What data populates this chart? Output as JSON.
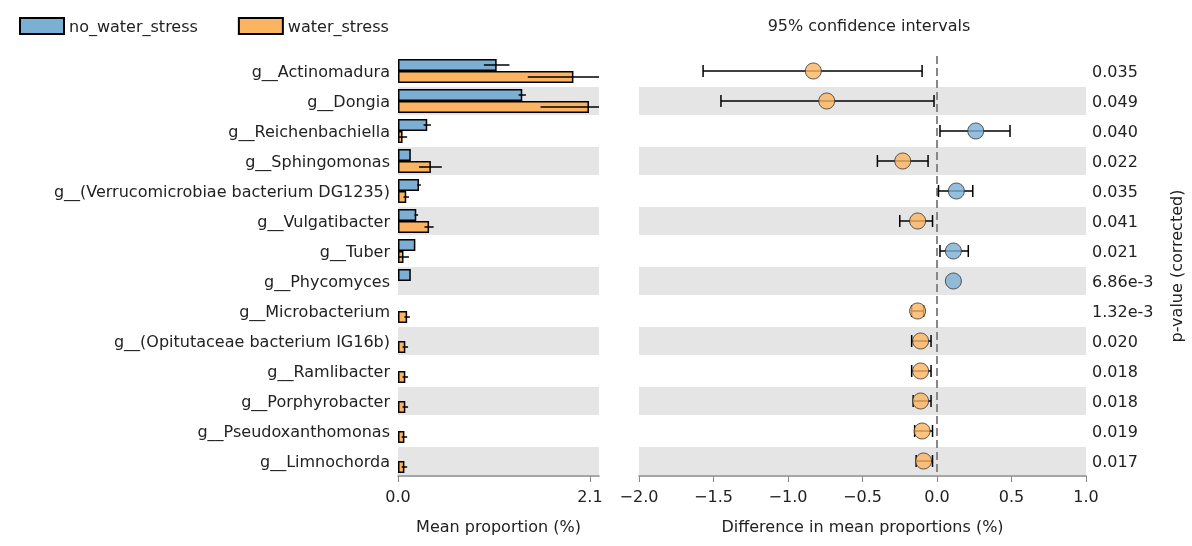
{
  "chart_data": [
    {
      "type": "bar",
      "orientation": "horizontal",
      "legend": "top left",
      "xlabel": "Mean proportion (%)",
      "categories": [
        "g__Actinomadura",
        "g__Dongia",
        "g__Reichenbachiella",
        "g__Sphingomonas",
        "g__(Verrucomicrobiae bacterium DG1235)",
        "g__Vulgatibacter",
        "g__Tuber",
        "g__Phycomyces",
        "g__Microbacterium",
        "g__(Opitutaceae bacterium IG16b)",
        "g__Ramlibacter",
        "g__Porphyrobacter",
        "g__Pseudoxanthomonas",
        "g__Limnochorda"
      ],
      "series": [
        {
          "name": "no_water_stress",
          "color": "#7bafd4",
          "values": [
            1.08,
            1.36,
            0.32,
            0.14,
            0.23,
            0.2,
            0.19,
            0.14,
            0,
            0,
            0,
            0,
            0,
            0
          ],
          "errors": [
            0.14,
            0.04,
            0.04,
            null,
            0.02,
            0.02,
            null,
            null,
            null,
            null,
            null,
            null,
            null,
            null
          ]
        },
        {
          "name": "water_stress",
          "color": "#fdb462",
          "values": [
            1.92,
            2.09,
            0.05,
            0.36,
            0.09,
            0.34,
            0.06,
            0,
            0.1,
            0.08,
            0.08,
            0.08,
            0.07,
            0.07
          ],
          "errors": [
            [
              1.42,
              2.2
            ],
            [
              1.56,
              2.2
            ],
            0.05,
            [
              0.23,
              0.48
            ],
            0.03,
            0.05,
            0.06,
            null,
            0.03,
            0.03,
            0.03,
            0.03,
            0.03,
            0.03
          ]
        }
      ],
      "xlim": [
        0,
        2.2
      ],
      "xticks": [
        {
          "value": 0,
          "label": "0.0"
        },
        {
          "value": 2.1,
          "label": "2.1"
        }
      ],
      "bands": [
        {
          "axis": "y",
          "from": "g__Dongia",
          "to": "g__Dongia",
          "color": "#e5e5e5"
        },
        {
          "axis": "y",
          "from": "g__Sphingomonas",
          "to": "g__Sphingomonas",
          "color": "#e5e5e5"
        },
        {
          "axis": "y",
          "from": "g__Vulgatibacter",
          "to": "g__Vulgatibacter",
          "color": "#e5e5e5"
        },
        {
          "axis": "y",
          "from": "g__Phycomyces",
          "to": "g__Phycomyces",
          "color": "#e5e5e5"
        },
        {
          "axis": "y",
          "from": "g__(Opitutaceae bacterium IG16b)",
          "to": "g__(Opitutaceae bacterium IG16b)",
          "color": "#e5e5e5"
        },
        {
          "axis": "y",
          "from": "g__Porphyrobacter",
          "to": "g__Porphyrobacter",
          "color": "#e5e5e5"
        },
        {
          "axis": "y",
          "from": "g__Limnochorda",
          "to": "g__Limnochorda",
          "color": "#e5e5e5"
        }
      ]
    },
    {
      "type": "scatter",
      "orientation": "horizontal",
      "title": "95% confidence intervals",
      "xlabel": "Difference in mean proportions (%)",
      "y2label": "p-value (corrected)",
      "marker": "circle",
      "tick_labels": "x",
      "categories": [
        "g__Actinomadura",
        "g__Dongia",
        "g__Reichenbachiella",
        "g__Sphingomonas",
        "g__(Verrucomicrobiae bacterium DG1235)",
        "g__Vulgatibacter",
        "g__Tuber",
        "g__Phycomyces",
        "g__Microbacterium",
        "g__(Opitutaceae bacterium IG16b)",
        "g__Ramlibacter",
        "g__Porphyrobacter",
        "g__Pseudoxanthomonas",
        "g__Limnochorda"
      ],
      "y2_categories": [
        "0.035",
        "0.049",
        "0.040",
        "0.022",
        "0.035",
        "0.041",
        "0.021",
        "6.86e-3",
        "1.32e-3",
        "0.020",
        "0.018",
        "0.018",
        "0.019",
        "0.017"
      ],
      "values": [
        -0.83,
        -0.74,
        0.26,
        -0.23,
        0.13,
        -0.13,
        0.11,
        0.11,
        -0.13,
        -0.11,
        -0.11,
        -0.11,
        -0.1,
        -0.09
      ],
      "colors": [
        "#fdb462",
        "#fdb462",
        "#7bafd4",
        "#fdb462",
        "#7bafd4",
        "#fdb462",
        "#7bafd4",
        "#7bafd4",
        "#fdb462",
        "#fdb462",
        "#fdb462",
        "#fdb462",
        "#fdb462",
        "#fdb462"
      ],
      "errors": [
        [
          -1.57,
          -0.1
        ],
        [
          -1.45,
          -0.02
        ],
        [
          0.02,
          0.49
        ],
        [
          -0.4,
          -0.06
        ],
        [
          0.01,
          0.24
        ],
        [
          -0.25,
          -0.03
        ],
        [
          0.02,
          0.21
        ],
        null,
        [
          -0.17,
          -0.09
        ],
        [
          -0.17,
          -0.04
        ],
        [
          -0.17,
          -0.04
        ],
        [
          -0.16,
          -0.04
        ],
        [
          -0.15,
          -0.03
        ],
        [
          -0.14,
          -0.03
        ]
      ],
      "xlim": [
        -2,
        1
      ],
      "xticks": [
        {
          "value": -2,
          "label": "−2.0"
        },
        {
          "value": -1.5,
          "label": "−1.5"
        },
        {
          "value": -1,
          "label": "−1.0"
        },
        {
          "value": -0.5,
          "label": "−0.5"
        },
        {
          "value": 0,
          "label": "0.0"
        },
        {
          "value": 0.5,
          "label": "0.5"
        },
        {
          "value": 1,
          "label": "1.0"
        }
      ],
      "ref_lines": [
        {
          "axis": "x",
          "value": 0,
          "color": "#888888",
          "line_style": "dashed"
        }
      ],
      "bands": [
        {
          "axis": "y",
          "from": "g__Dongia",
          "to": "g__Dongia",
          "color": "#e5e5e5"
        },
        {
          "axis": "y",
          "from": "g__Sphingomonas",
          "to": "g__Sphingomonas",
          "color": "#e5e5e5"
        },
        {
          "axis": "y",
          "from": "g__Vulgatibacter",
          "to": "g__Vulgatibacter",
          "color": "#e5e5e5"
        },
        {
          "axis": "y",
          "from": "g__Phycomyces",
          "to": "g__Phycomyces",
          "color": "#e5e5e5"
        },
        {
          "axis": "y",
          "from": "g__(Opitutaceae bacterium IG16b)",
          "to": "g__(Opitutaceae bacterium IG16b)",
          "color": "#e5e5e5"
        },
        {
          "axis": "y",
          "from": "g__Porphyrobacter",
          "to": "g__Porphyrobacter",
          "color": "#e5e5e5"
        },
        {
          "axis": "y",
          "from": "g__Limnochorda",
          "to": "g__Limnochorda",
          "color": "#e5e5e5"
        }
      ]
    }
  ]
}
